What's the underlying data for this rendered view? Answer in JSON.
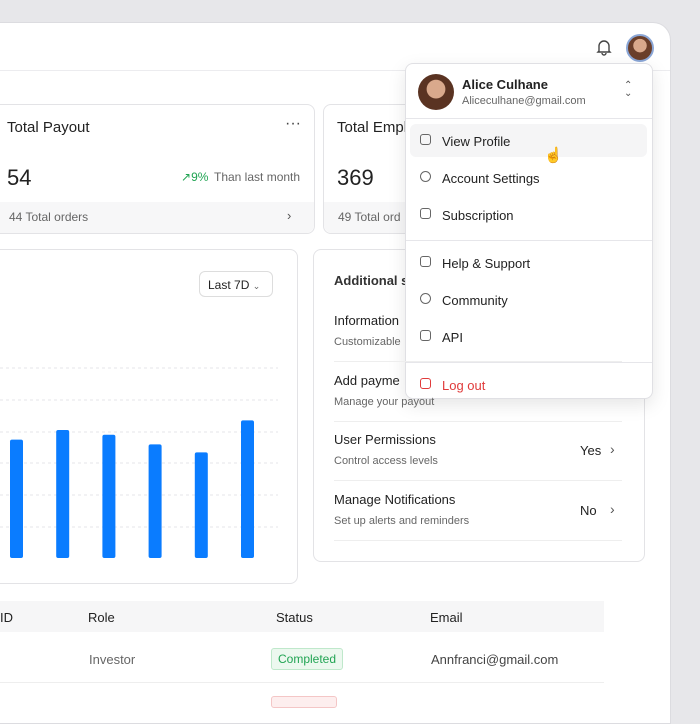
{
  "header": {},
  "cards": [
    {
      "title": "Total Payout",
      "value": "54",
      "change": "9%",
      "change_note": "Than last month",
      "footer": "44 Total orders"
    },
    {
      "title": "Total Empl",
      "value": "369",
      "footer": "49 Total ord"
    }
  ],
  "chart": {
    "type": "bar",
    "range_label": "Last 7D",
    "values": [
      3.7,
      4.0,
      3.85,
      3.55,
      3.3,
      4.3
    ],
    "ylim": [
      0,
      6
    ],
    "color": "#0a7cff"
  },
  "settings": {
    "title": "Additional s",
    "items": [
      {
        "title": "Information",
        "subtitle": "Customizable"
      },
      {
        "title": "Add payme",
        "subtitle": "Manage your payout"
      },
      {
        "title": "User Permissions",
        "subtitle": "Control access levels",
        "value": "Yes"
      },
      {
        "title": "Manage Notifications",
        "subtitle": "Set up alerts and reminders",
        "value": "No"
      }
    ]
  },
  "table": {
    "headers": [
      "ID",
      "Role",
      "Status",
      "Email"
    ],
    "rows": [
      {
        "role": "Investor",
        "status": "Completed",
        "email": "Annfranci@gmail.com"
      }
    ]
  },
  "menu": {
    "name": "Alice Culhane",
    "email": "Aliceculhane@gmail.com",
    "groups": [
      [
        "View Profile",
        "Account Settings",
        "Subscription"
      ],
      [
        "Help & Support",
        "Community",
        "API"
      ],
      [
        "Log out"
      ]
    ]
  }
}
